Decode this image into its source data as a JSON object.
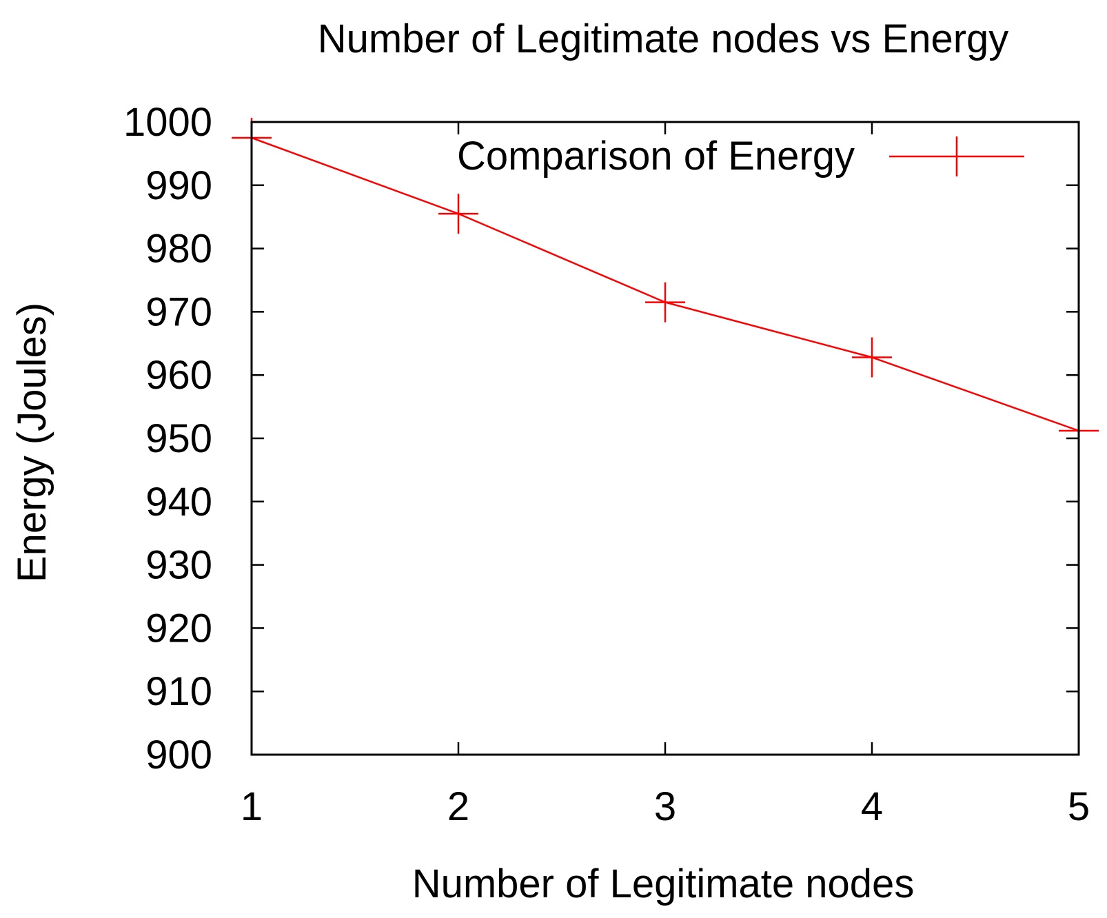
{
  "chart_data": {
    "type": "line",
    "title": "Number of Legitimate nodes vs Energy",
    "xlabel": "Number of Legitimate nodes",
    "ylabel": "Energy (Joules)",
    "x": [
      1,
      2,
      3,
      4,
      5
    ],
    "xlim": [
      1,
      5
    ],
    "ylim": [
      900,
      1000
    ],
    "x_ticks": [
      "1",
      "2",
      "3",
      "4",
      "5"
    ],
    "y_ticks": [
      "900",
      "910",
      "920",
      "930",
      "940",
      "950",
      "960",
      "970",
      "980",
      "990",
      "1000"
    ],
    "grid": false,
    "legend_position": "top-right",
    "series": [
      {
        "name": "Comparison of Energy",
        "color": "#ff0000",
        "marker": "plus",
        "values": [
          997.5,
          985.5,
          971.5,
          962.8,
          951.2
        ]
      }
    ]
  }
}
